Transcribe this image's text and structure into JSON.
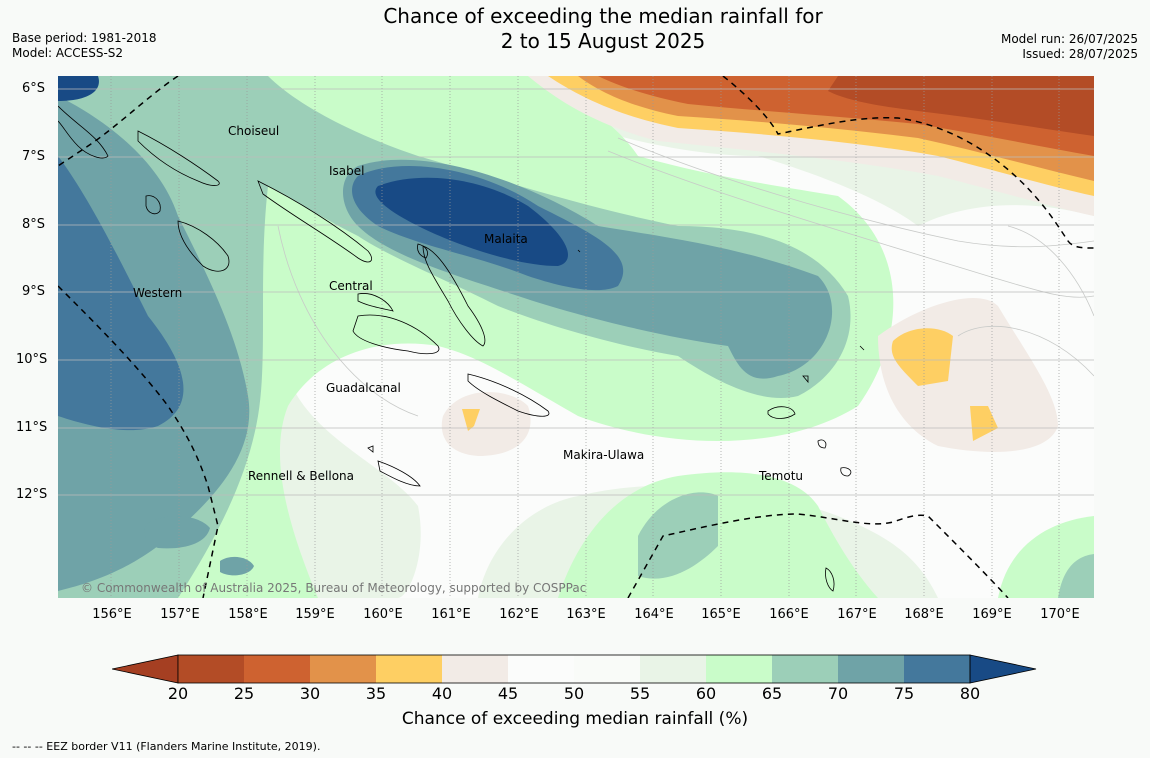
{
  "title_line1": "Chance of exceeding the median rainfall for",
  "title_line2": "2 to 15 August 2025",
  "base_period": "Base period: 1981-2018",
  "model": "Model: ACCESS-S2",
  "model_run": "Model run: 26/07/2025",
  "issued": "Issued: 28/07/2025",
  "lat_labels": [
    "6°S",
    "7°S",
    "8°S",
    "9°S",
    "10°S",
    "11°S",
    "12°S"
  ],
  "lon_labels": [
    "156°E",
    "157°E",
    "158°E",
    "159°E",
    "160°E",
    "161°E",
    "162°E",
    "163°E",
    "164°E",
    "165°E",
    "166°E",
    "167°E",
    "168°E",
    "169°E",
    "170°E"
  ],
  "places": [
    "Choiseul",
    "Isabel",
    "Malaita",
    "Central",
    "Western",
    "Guadalcanal",
    "Makira-Ulawa",
    "Rennell & Bellona",
    "Temotu"
  ],
  "copyright": "© Commonwealth of Australia 2025, Bureau of Meteorology, supported by COSPPac",
  "colorbar": {
    "ticks": [
      "20",
      "25",
      "30",
      "35",
      "40",
      "45",
      "50",
      "55",
      "60",
      "65",
      "70",
      "75",
      "80"
    ],
    "colors": [
      "#b34c26",
      "#ce6230",
      "#e2924a",
      "#fecf63",
      "#f2ebe6",
      "#fbfcfb",
      "#f9fbf8",
      "#e9f4e7",
      "#c9fcc9",
      "#9ccfb8",
      "#6fa3a7",
      "#44789c"
    ],
    "under_color": "#a53f22",
    "over_color": "#184a85",
    "label": "Chance of exceeding median rainfall (%)"
  },
  "eez_note": "--  --  -- EEZ border V11 (Flanders Marine Institute, 2019)."
}
